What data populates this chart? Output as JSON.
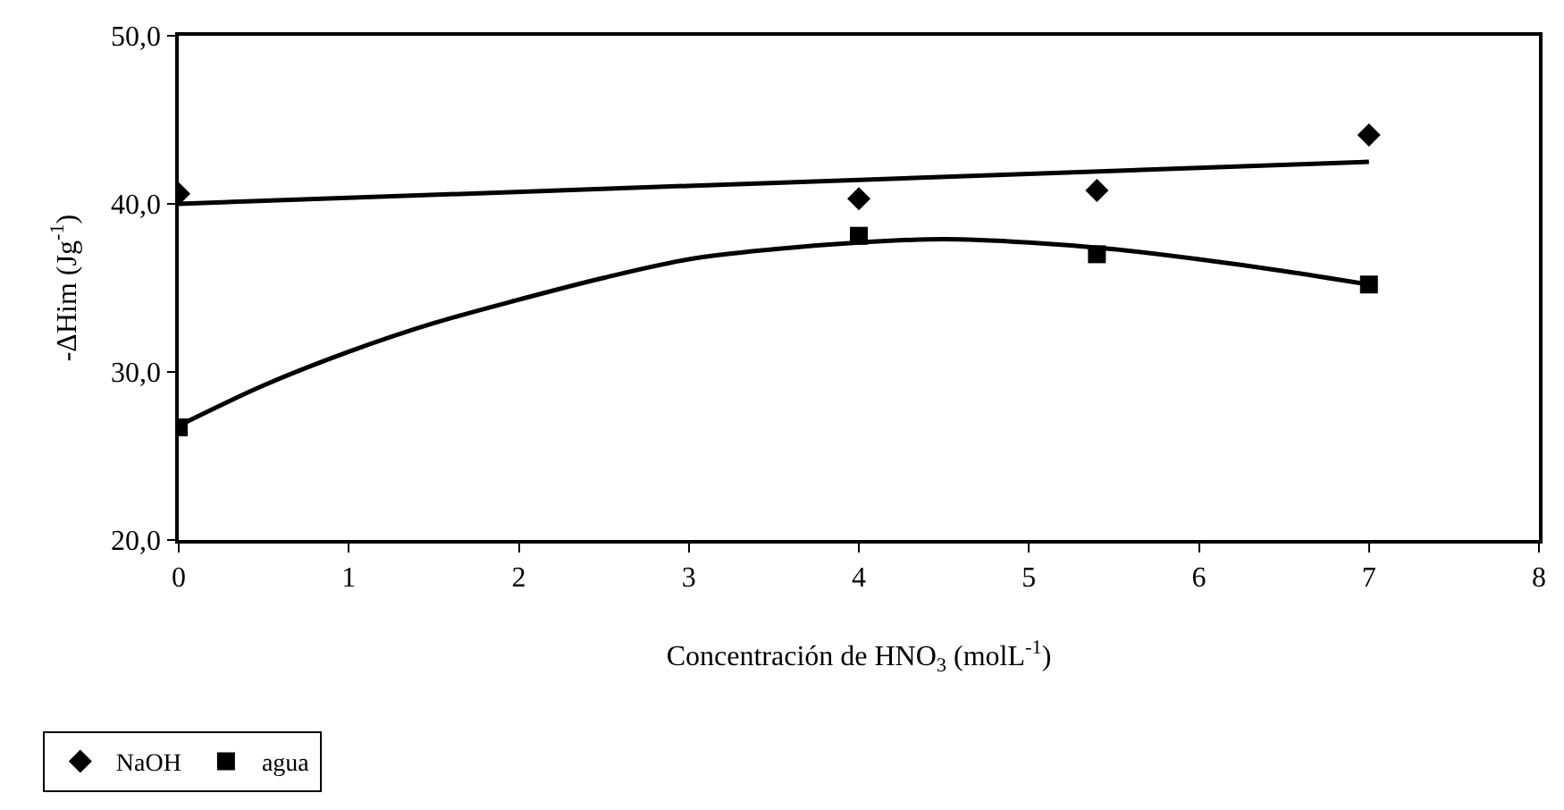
{
  "chart_data": {
    "type": "scatter",
    "xlabel": "Concentración de HNO$_{3}$ (molL$^{-1}$)",
    "ylabel": "-ΔHim (Jg$^{-1}$)",
    "xlim": [
      0,
      8
    ],
    "xticks": [
      0,
      1,
      2,
      3,
      4,
      5,
      6,
      7,
      8
    ],
    "ylim": [
      20,
      50
    ],
    "yticks": [
      {
        "value": 20,
        "label": "20,0"
      },
      {
        "value": 30,
        "label": "30,0"
      },
      {
        "value": 40,
        "label": "40,0"
      },
      {
        "value": 50,
        "label": "50,0"
      }
    ],
    "legend": "bottom left",
    "series": [
      {
        "name": "NaOH",
        "color": "#000000",
        "marker": "diamond",
        "x": [
          0,
          4,
          5.4,
          7
        ],
        "values": [
          40.6,
          40.3,
          40.8,
          44.1
        ]
      },
      {
        "name": "agua",
        "color": "#000000",
        "marker": "square",
        "x": [
          0,
          4,
          5.4,
          7
        ],
        "values": [
          26.7,
          38.1,
          37.0,
          35.2
        ]
      },
      {
        "type": "line",
        "color": "#000000",
        "x": [
          0,
          7
        ],
        "values": [
          40.0,
          42.5
        ]
      },
      {
        "type": "line",
        "color": "#000000",
        "x": [
          0,
          0.5,
          1,
          1.5,
          2,
          2.5,
          3,
          3.5,
          4,
          4.5,
          5,
          5.5,
          6,
          6.5,
          7
        ],
        "values": [
          26.8,
          29.2,
          31.2,
          32.9,
          34.3,
          35.6,
          36.7,
          37.3,
          37.7,
          37.9,
          37.7,
          37.3,
          36.7,
          36.0,
          35.2
        ]
      }
    ]
  }
}
